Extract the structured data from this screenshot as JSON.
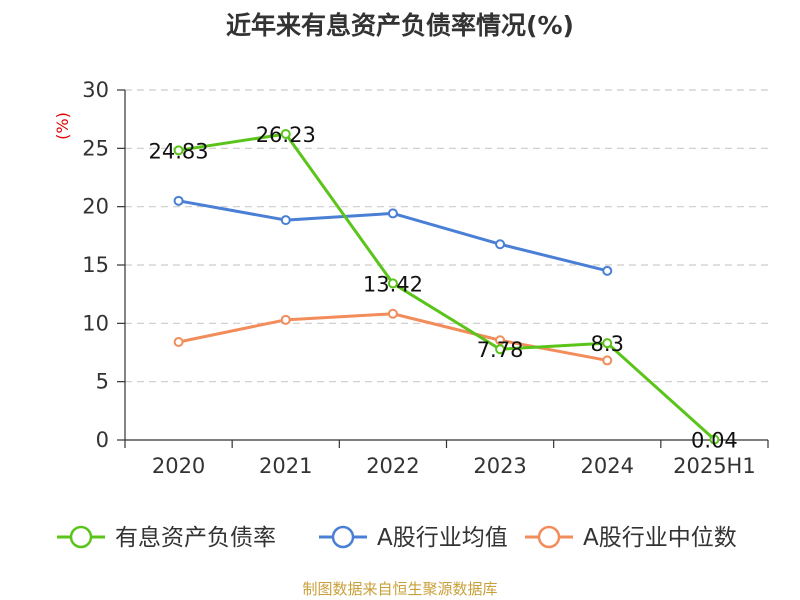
{
  "chart_data": {
    "type": "line",
    "title": "近年来有息资产负债率情况(%)",
    "unit_label": "(%)",
    "categories": [
      "2020",
      "2021",
      "2022",
      "2023",
      "2024",
      "2025H1"
    ],
    "ylim": [
      0,
      30
    ],
    "yticks": [
      0,
      5,
      10,
      15,
      20,
      25,
      30
    ],
    "grid": true,
    "legend_position": "bottom",
    "series": [
      {
        "name": "有息资产负债率",
        "color": "#5bc41a",
        "values": [
          24.83,
          26.23,
          13.42,
          7.78,
          8.3,
          0.04
        ],
        "show_labels": true
      },
      {
        "name": "A股行业均值",
        "color": "#4a7fd6",
        "values": [
          20.5,
          18.85,
          19.42,
          16.78,
          14.5,
          null
        ],
        "show_labels": false
      },
      {
        "name": "A股行业中位数",
        "color": "#f28c5a",
        "values": [
          8.4,
          10.3,
          10.82,
          8.55,
          6.82,
          null
        ],
        "show_labels": false
      }
    ]
  },
  "source_text": "制图数据来自恒生聚源数据库",
  "source_color": "#c9a03a"
}
